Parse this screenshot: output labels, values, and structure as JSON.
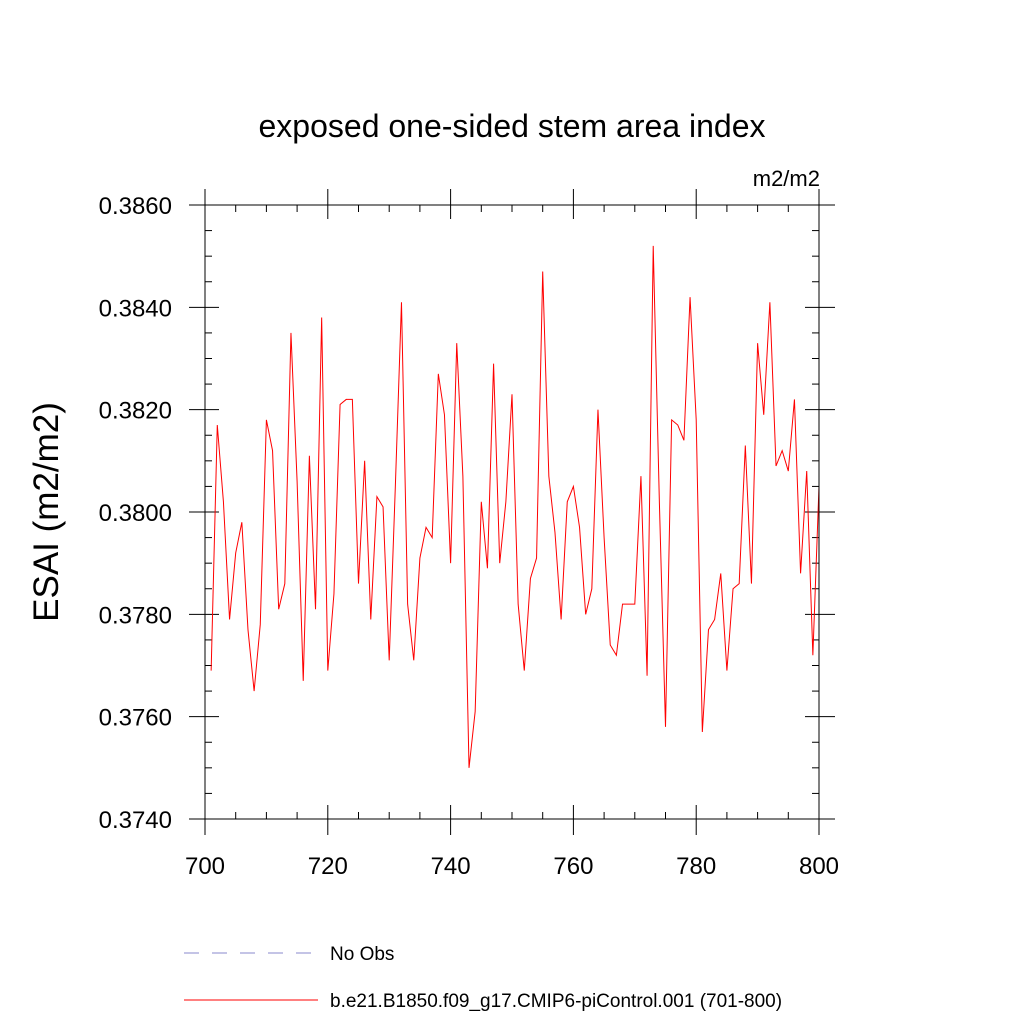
{
  "chart_data": {
    "type": "line",
    "title": "exposed one-sided stem area index",
    "units": "m2/m2",
    "ylabel": "ESAI  (m2/m2)",
    "xlabel": "",
    "xlim": [
      700,
      800
    ],
    "ylim": [
      0.374,
      0.386
    ],
    "x_ticks": [
      700,
      720,
      740,
      760,
      780,
      800
    ],
    "y_ticks": [
      "0.3740",
      "0.3760",
      "0.3780",
      "0.3800",
      "0.3820",
      "0.3840",
      "0.3860"
    ],
    "y_tick_values": [
      0.374,
      0.376,
      0.378,
      0.38,
      0.382,
      0.384,
      0.386
    ],
    "x_minor_step": 5,
    "y_minor_step": 0.0005,
    "grid": false,
    "legend": [
      {
        "label": "No Obs",
        "style": "dashed",
        "color": "#8888cc"
      },
      {
        "label": "b.e21.B1850.f09_g17.CMIP6-piControl.001 (701-800)",
        "style": "solid",
        "color": "#ff0000"
      }
    ],
    "series": [
      {
        "name": "b.e21.B1850.f09_g17.CMIP6-piControl.001 (701-800)",
        "color": "#ff0000",
        "x": [
          701,
          702,
          703,
          704,
          705,
          706,
          707,
          708,
          709,
          710,
          711,
          712,
          713,
          714,
          715,
          716,
          717,
          718,
          719,
          720,
          721,
          722,
          723,
          724,
          725,
          726,
          727,
          728,
          729,
          730,
          731,
          732,
          733,
          734,
          735,
          736,
          737,
          738,
          739,
          740,
          741,
          742,
          743,
          744,
          745,
          746,
          747,
          748,
          749,
          750,
          751,
          752,
          753,
          754,
          755,
          756,
          757,
          758,
          759,
          760,
          761,
          762,
          763,
          764,
          765,
          766,
          767,
          768,
          769,
          770,
          771,
          772,
          773,
          774,
          775,
          776,
          777,
          778,
          779,
          780,
          781,
          782,
          783,
          784,
          785,
          786,
          787,
          788,
          789,
          790,
          791,
          792,
          793,
          794,
          795,
          796,
          797,
          798,
          799,
          800
        ],
        "values": [
          0.3769,
          0.3817,
          0.3802,
          0.3779,
          0.3792,
          0.3798,
          0.3777,
          0.3765,
          0.3778,
          0.3818,
          0.3812,
          0.3781,
          0.3786,
          0.3835,
          0.3806,
          0.3767,
          0.3811,
          0.3781,
          0.3838,
          0.3769,
          0.3784,
          0.3821,
          0.3822,
          0.3822,
          0.3786,
          0.381,
          0.3779,
          0.3803,
          0.3801,
          0.3771,
          0.3805,
          0.3841,
          0.3782,
          0.3771,
          0.3791,
          0.3797,
          0.3795,
          0.3827,
          0.3819,
          0.379,
          0.3833,
          0.3807,
          0.375,
          0.3761,
          0.3802,
          0.3789,
          0.3829,
          0.379,
          0.3802,
          0.3823,
          0.3782,
          0.3769,
          0.3787,
          0.3791,
          0.3847,
          0.3807,
          0.3796,
          0.3779,
          0.3802,
          0.3805,
          0.3797,
          0.378,
          0.3785,
          0.382,
          0.3795,
          0.3774,
          0.3772,
          0.3782,
          0.3782,
          0.3782,
          0.3807,
          0.3768,
          0.3852,
          0.3802,
          0.3758,
          0.3818,
          0.3817,
          0.3814,
          0.3842,
          0.3818,
          0.3757,
          0.3777,
          0.3779,
          0.3788,
          0.3769,
          0.3785,
          0.3786,
          0.3813,
          0.3786,
          0.3833,
          0.3819,
          0.3841,
          0.3809,
          0.3812,
          0.3808,
          0.3822,
          0.3788,
          0.3808,
          0.3772,
          0.3805
        ]
      }
    ]
  }
}
